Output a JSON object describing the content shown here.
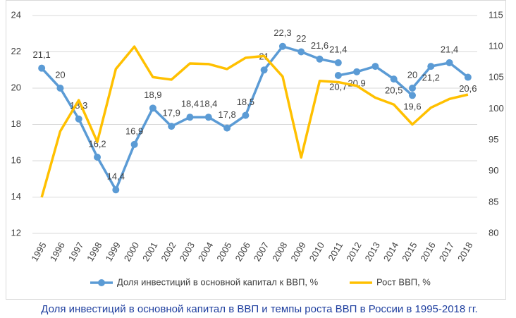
{
  "chart_data": {
    "type": "line",
    "caption": "Доля инвестиций в основной капитал в ВВП и темпы роста ВВП в России в 1995-2018 гг.",
    "categories": [
      "1995",
      "1996",
      "1997",
      "1998",
      "1999",
      "2000",
      "2001",
      "2002",
      "2003",
      "2004",
      "2005",
      "2006",
      "2007",
      "2008",
      "2009",
      "2010",
      "2011",
      "2012",
      "2013",
      "2014",
      "2015",
      "2016",
      "2017",
      "2018"
    ],
    "ylim": [
      12,
      24
    ],
    "yticks": [
      12,
      14,
      16,
      18,
      20,
      22,
      24
    ],
    "y2lim": [
      80,
      115
    ],
    "y2ticks": [
      80,
      85,
      90,
      95,
      100,
      105,
      110,
      115
    ],
    "grid": true,
    "legend": "bottom",
    "series": [
      {
        "name": "Доля инвестиций в основной капитал к ВВП, %",
        "color": "#5b9bd5",
        "marker": "circle",
        "values": [
          21.1,
          20,
          18.3,
          16.2,
          14.4,
          16.9,
          18.9,
          17.9,
          18.4,
          18.4,
          17.8,
          18.5,
          21,
          22.3,
          22,
          21.6,
          21.4,
          null,
          null,
          null,
          null,
          null,
          null,
          null
        ],
        "value_labels": [
          "21,1",
          "20",
          "18,3",
          "16,2",
          "14,4",
          "16,9",
          "18,9",
          "17,9",
          "18,4",
          "18,4",
          "17,8",
          "18,5",
          "21",
          "22,3",
          "22",
          "21,6",
          "21,4",
          null,
          null,
          null,
          null,
          null,
          null,
          null
        ]
      },
      {
        "color": "#5b9bd5",
        "marker": "circle",
        "values": [
          null,
          null,
          null,
          null,
          null,
          null,
          null,
          null,
          null,
          null,
          null,
          null,
          null,
          null,
          null,
          null,
          20.7,
          20.9,
          21.2,
          20.5,
          19.6,
          null,
          null,
          null
        ],
        "value_labels": [
          null,
          null,
          null,
          null,
          null,
          null,
          null,
          null,
          null,
          null,
          null,
          null,
          null,
          null,
          null,
          null,
          "20,7",
          "20,9",
          null,
          "20,5",
          "19,6",
          null,
          null,
          null
        ]
      },
      {
        "color": "#5b9bd5",
        "marker": "circle",
        "values": [
          null,
          null,
          null,
          null,
          null,
          null,
          null,
          null,
          null,
          null,
          null,
          null,
          null,
          null,
          null,
          null,
          null,
          null,
          null,
          null,
          20,
          21.2,
          21.4,
          20.6
        ],
        "value_labels": [
          null,
          null,
          null,
          null,
          null,
          null,
          null,
          null,
          null,
          null,
          null,
          null,
          null,
          null,
          null,
          null,
          null,
          null,
          null,
          null,
          "20",
          "21,2",
          "21,4",
          "20,6"
        ]
      },
      {
        "name": "Рост ВВП, %",
        "color": "#ffc000",
        "axis": "y2",
        "values": [
          85.8,
          96.4,
          101.4,
          94.7,
          106.4,
          110,
          105.1,
          104.7,
          107.3,
          107.2,
          106.4,
          108.2,
          108.5,
          105.2,
          92.2,
          104.5,
          104.3,
          103.7,
          101.8,
          100.7,
          97.5,
          100.2,
          101.6,
          102.3
        ]
      }
    ]
  }
}
